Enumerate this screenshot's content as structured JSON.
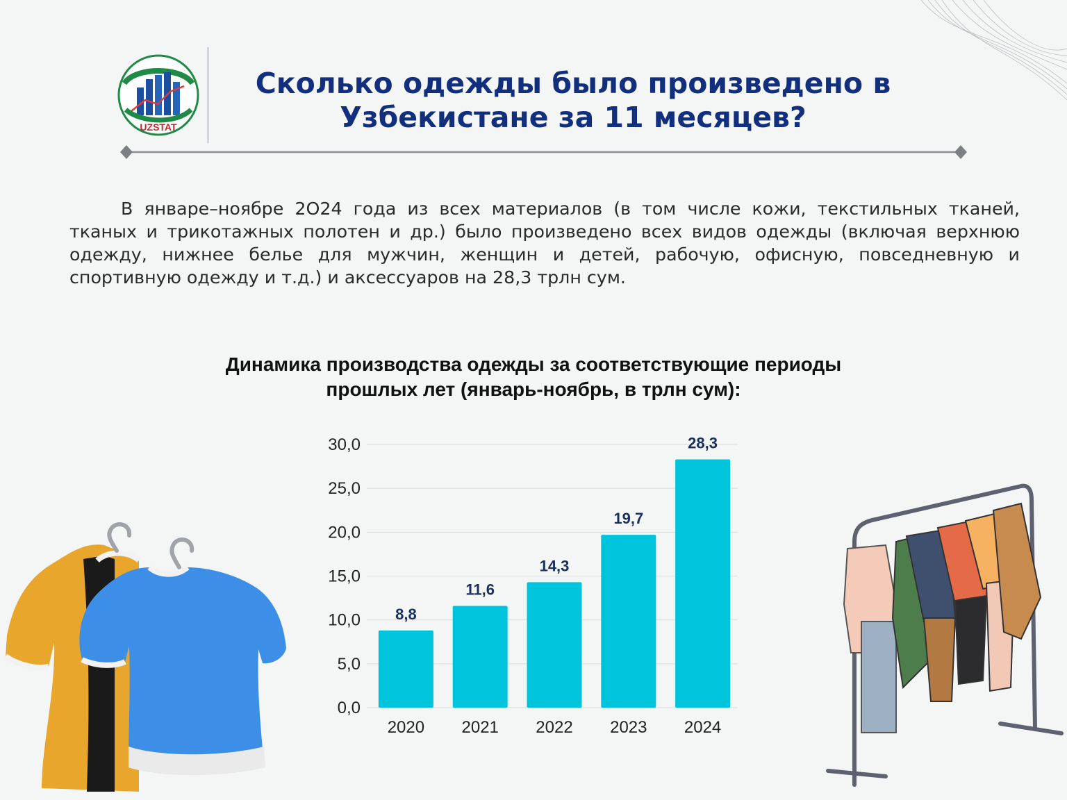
{
  "header": {
    "logo_text": "UZSTAT",
    "title_line1": "Сколько одежды было произведено в",
    "title_line2": "Узбекистане за 11 месяцев?"
  },
  "intro": {
    "text": "В январе–ноябре 2О24 года из всех материалов (в том числе кожи, текстильных тканей, тканых и трикотажных полотен и др.) было произведено всех видов одежды (включая верхнюю одежду, нижнее белье для мужчин, женщин и детей, рабочую, офисную, повседневную и спортивную одежду и т.д.) и аксессуаров на 28,3 трлн сум."
  },
  "colors": {
    "title": "#122f7e",
    "bar": "#00c4dc",
    "data_label": "#1b2f5e",
    "grid": "#d9d9d9"
  },
  "chart_data": {
    "type": "bar",
    "title_line1": "Динамика производства одежды за соответствующие периоды",
    "title_line2": "прошлых лет (январь-ноябрь, в трлн сум):",
    "categories": [
      "2020",
      "2021",
      "2022",
      "2023",
      "2024"
    ],
    "values": [
      8.8,
      11.6,
      14.3,
      19.7,
      28.3
    ],
    "value_labels": [
      "8,8",
      "11,6",
      "14,3",
      "19,7",
      "28,3"
    ],
    "y_ticks": [
      "0,0",
      "5,0",
      "10,0",
      "15,0",
      "20,0",
      "25,0",
      "30,0"
    ],
    "ylim": [
      0,
      30
    ],
    "y_step": 5,
    "xlabel": "",
    "ylabel": "",
    "grid": true,
    "legend": "none"
  }
}
